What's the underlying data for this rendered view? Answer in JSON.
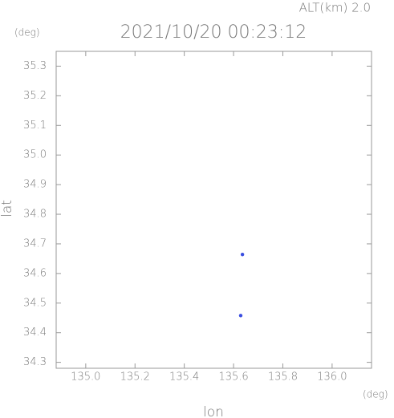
{
  "chart_data": {
    "type": "scatter",
    "title": "2021/10/20 00:23:12",
    "subtitle": "ALT(km) 2.0",
    "y_unit": "(deg)",
    "x_unit": "(deg)",
    "x_label": "lon",
    "y_label": "lat",
    "x": [
      135.629,
      135.636
    ],
    "values": [
      34.458,
      34.664
    ],
    "color": "#3a4ee0",
    "xlim": [
      134.88,
      136.16
    ],
    "ylim": [
      34.28,
      35.35
    ],
    "xticks": [
      {
        "value": 135.0,
        "label": "135.0"
      },
      135.2,
      135.4,
      135.6,
      135.8,
      {
        "value": 136.0,
        "label": "136.0"
      }
    ],
    "yticks": [
      34.3,
      34.4,
      34.5,
      34.6,
      34.7,
      34.8,
      34.9,
      {
        "value": 35.0,
        "label": "35.0"
      },
      35.1,
      35.2,
      35.3
    ]
  }
}
